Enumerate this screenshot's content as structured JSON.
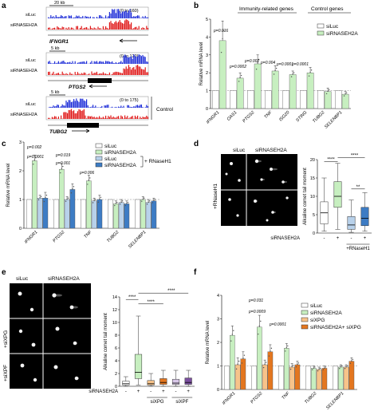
{
  "colors": {
    "siluc": "#ffffff",
    "sirnaseh2a": "#c7efc0",
    "siluc_rnaseh1": "#b8d1ea",
    "sirnaseh2a_rnaseh1": "#3d7cc4",
    "sixpg": "#f7c38a",
    "sirnaseh2a_sixpg": "#e3761f",
    "track_blue": "#1f2ed8",
    "track_red": "#e01818",
    "micro_bg": "#000000"
  },
  "panel_a": {
    "letter": "a",
    "tracks": [
      {
        "scale": "20 kb",
        "range": "(0 to 160)",
        "gene": "IFNGR1",
        "labels": [
          "siLuc",
          "siRNASEH2A"
        ]
      },
      {
        "scale": "5 kb",
        "range": "(0 to 120)",
        "gene": "PTGS2",
        "labels": [
          "siLuc",
          "siRNASEH2A"
        ]
      },
      {
        "scale": "5 kb",
        "range": "(0 to 175)",
        "gene": "TUBG2",
        "labels": [
          "siLuc",
          "siRNASEH2A"
        ],
        "side_label": "Control"
      }
    ]
  },
  "panel_b": {
    "letter": "b",
    "group_immune": "Immunity-related genes",
    "group_control": "Control genes",
    "legend": [
      "siLuc",
      "siRNASEH2A"
    ],
    "pvalues": [
      "p=0.016",
      "p=0.0002",
      "p=0.002",
      "p=0.004",
      "p=0.0001",
      "p=0.0001"
    ]
  },
  "panel_c": {
    "letter": "c",
    "legend": [
      "siLuc",
      "siRNASEH2A",
      "siLuc",
      "siRNASEH2A"
    ],
    "legend_bracket": "+ RNaseH1",
    "pvalues": [
      "p=0.002",
      "p=0.0001",
      "p=0.019",
      "p=0.001",
      "p=0.006"
    ]
  },
  "panel_d": {
    "letter": "d",
    "col_labels": [
      "siLuc",
      "siRNASEH2A"
    ],
    "row_label": "+RNaseH1",
    "xlab": "siRNASEH2A",
    "signs": [
      "-",
      "+",
      "-",
      "+"
    ],
    "group_label": "+RNaseH1",
    "stars": [
      "****",
      "****",
      "**"
    ]
  },
  "panel_e": {
    "letter": "e",
    "col_labels": [
      "siLuc",
      "siRNASEH2A"
    ],
    "row_labels": [
      "+siXPG",
      "+siXPF"
    ],
    "xlab": "siRNASEH2A",
    "signs": [
      "-",
      "+",
      "-",
      "+",
      "-",
      "+"
    ],
    "groups": [
      "siXPG",
      "siXPF"
    ],
    "stars": [
      "****",
      "****",
      "****"
    ]
  },
  "panel_f": {
    "letter": "f",
    "legend": [
      "siLuc",
      "siRNASEH2A",
      "siXPG",
      "siRNASEH2A+ siXPG"
    ],
    "pvalues": [
      "p=0.031",
      "p=0.0009",
      "p=0.0001"
    ]
  },
  "chart_data": [
    {
      "type": "bar",
      "panel": "b",
      "categories": [
        "IFNGR1",
        "OAS1",
        "PTGS2",
        "TNF",
        "ISG20",
        "STING",
        "TUBG2",
        "SELENBP1"
      ],
      "series": [
        {
          "name": "siLuc",
          "values": [
            1,
            1,
            1,
            1,
            1,
            1,
            1,
            1
          ]
        },
        {
          "name": "siRNASEH2A",
          "values": [
            3.8,
            1.7,
            2.5,
            2.1,
            1.9,
            2.0,
            0.95,
            0.8
          ]
        }
      ],
      "errors": [
        [
          0,
          0,
          0,
          0,
          0,
          0,
          0,
          0
        ],
        [
          1.1,
          0.3,
          0.5,
          0.3,
          0.2,
          0.3,
          0.2,
          0.15
        ]
      ],
      "ylabel": "Relative mRNA level",
      "ylim": [
        0,
        5
      ],
      "yticks": [
        0,
        1,
        2,
        3,
        4,
        5
      ]
    },
    {
      "type": "bar",
      "panel": "c",
      "categories": [
        "IFNGR1",
        "PTGS2",
        "TNF",
        "TUBG2",
        "SELENBP1"
      ],
      "series": [
        {
          "name": "siLuc",
          "values": [
            1,
            1,
            1,
            1,
            1
          ]
        },
        {
          "name": "siRNASEH2A",
          "values": [
            2.35,
            2.05,
            1.65,
            0.85,
            1.0
          ]
        },
        {
          "name": "siLuc + RNaseH1",
          "values": [
            1.05,
            1.0,
            0.95,
            0.9,
            0.9
          ]
        },
        {
          "name": "siRNASEH2A + RNaseH1",
          "values": [
            1.05,
            1.35,
            1.0,
            0.85,
            0.95
          ]
        }
      ],
      "errors": [
        [
          0,
          0,
          0,
          0,
          0
        ],
        [
          0.2,
          0.2,
          0.2,
          0.1,
          0.1
        ],
        [
          0.1,
          0.1,
          0.1,
          0.1,
          0.1
        ],
        [
          0.2,
          0.2,
          0.15,
          0.1,
          0.1
        ]
      ],
      "ylabel": "Relative mRNA level",
      "ylim": [
        0,
        3
      ],
      "yticks": [
        0,
        1,
        2,
        3
      ]
    },
    {
      "type": "box",
      "panel": "d",
      "ylabel": "Alkaline comet tail moment",
      "ylim": [
        0,
        20
      ],
      "yticks": [
        0,
        5,
        10,
        15,
        20
      ],
      "boxes": [
        {
          "min": 0.5,
          "q1": 2.5,
          "median": 5.5,
          "q3": 8.5,
          "max": 15,
          "color": "#ffffff"
        },
        {
          "min": 1,
          "q1": 7,
          "median": 10,
          "q3": 14,
          "max": 19,
          "color": "#c7efc0"
        },
        {
          "min": 0.2,
          "q1": 1,
          "median": 2.2,
          "q3": 4.5,
          "max": 9,
          "color": "#b8d1ea"
        },
        {
          "min": 0.5,
          "q1": 2,
          "median": 4,
          "q3": 7,
          "max": 11,
          "color": "#3d7cc4"
        }
      ]
    },
    {
      "type": "box",
      "panel": "e",
      "ylabel": "Alkaline comet tail moment",
      "ylim": [
        0,
        14
      ],
      "yticks": [
        0,
        2,
        4,
        6,
        8,
        10,
        12,
        14
      ],
      "boxes": [
        {
          "min": 0,
          "q1": 0.2,
          "median": 0.4,
          "q3": 0.8,
          "max": 1.5,
          "color": "#ffffff"
        },
        {
          "min": 0.2,
          "q1": 1.2,
          "median": 2.2,
          "q3": 5,
          "max": 11,
          "color": "#c7efc0"
        },
        {
          "min": 0,
          "q1": 0.2,
          "median": 0.4,
          "q3": 0.9,
          "max": 2,
          "color": "#f7c38a"
        },
        {
          "min": 0,
          "q1": 0.3,
          "median": 0.6,
          "q3": 1.2,
          "max": 2.5,
          "color": "#e3761f"
        },
        {
          "min": 0,
          "q1": 0.3,
          "median": 0.5,
          "q3": 1.1,
          "max": 2.5,
          "color": "#d8c7e8"
        },
        {
          "min": 0,
          "q1": 0.3,
          "median": 0.6,
          "q3": 1.3,
          "max": 2.5,
          "color": "#7b4f9e"
        }
      ]
    },
    {
      "type": "bar",
      "panel": "f",
      "categories": [
        "IFNGR1",
        "PTGS2",
        "TNF",
        "TUBG2",
        "SELENBP1"
      ],
      "series": [
        {
          "name": "siLuc",
          "values": [
            1,
            1,
            1,
            1,
            1
          ]
        },
        {
          "name": "siRNASEH2A",
          "values": [
            2.3,
            2.65,
            1.75,
            0.9,
            0.95
          ]
        },
        {
          "name": "siXPG",
          "values": [
            1.05,
            1.05,
            0.95,
            0.85,
            0.95
          ]
        },
        {
          "name": "siRNASEH2A+ siXPG",
          "values": [
            1.3,
            1.6,
            1.05,
            0.9,
            1.2
          ]
        }
      ],
      "errors": [
        [
          0,
          0,
          0,
          0,
          0
        ],
        [
          0.4,
          0.5,
          0.2,
          0.1,
          0.1
        ],
        [
          0.3,
          0.2,
          0.15,
          0.1,
          0.1
        ],
        [
          0.3,
          0.3,
          0.15,
          0.1,
          0.15
        ]
      ],
      "ylabel": "Relative mRNA level",
      "ylim": [
        0,
        4
      ],
      "yticks": [
        0,
        1,
        2,
        3,
        4
      ]
    }
  ]
}
